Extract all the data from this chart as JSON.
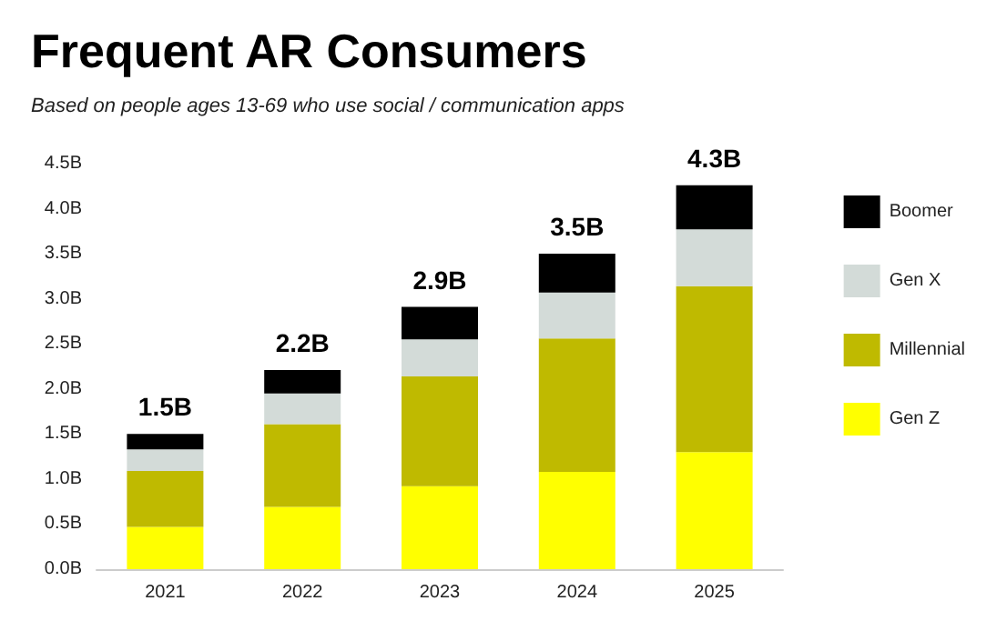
{
  "chart_data": {
    "type": "bar",
    "title": "Frequent AR Consumers",
    "subtitle": "Based on people ages 13-69 who use social / communication apps",
    "categories": [
      "2021",
      "2022",
      "2023",
      "2024",
      "2025"
    ],
    "series": [
      {
        "name": "Gen Z",
        "color": "#ffff00",
        "values": [
          0.47,
          0.69,
          0.92,
          1.08,
          1.3
        ]
      },
      {
        "name": "Millennial",
        "color": "#bfba00",
        "values": [
          0.62,
          0.92,
          1.22,
          1.48,
          1.84
        ]
      },
      {
        "name": "Gen X",
        "color": "#d3dbd8",
        "values": [
          0.24,
          0.34,
          0.41,
          0.51,
          0.63
        ]
      },
      {
        "name": "Boomer",
        "color": "#000000",
        "values": [
          0.17,
          0.26,
          0.36,
          0.43,
          0.49
        ]
      }
    ],
    "stacked": true,
    "totals": [
      "1.5B",
      "2.2B",
      "2.9B",
      "3.5B",
      "4.3B"
    ],
    "ylim": [
      0,
      4.5
    ],
    "yticks": [
      {
        "value": 0,
        "label": "0.0B"
      },
      {
        "value": 0.5,
        "label": "0.5B"
      },
      {
        "value": 1,
        "label": "1.0B"
      },
      {
        "value": 1.5,
        "label": "1.5B"
      },
      {
        "value": 2,
        "label": "2.0B"
      },
      {
        "value": 2.5,
        "label": "2.5B"
      },
      {
        "value": 3,
        "label": "3.0B"
      },
      {
        "value": 3.5,
        "label": "3.5B"
      },
      {
        "value": 4,
        "label": "4.0B"
      },
      {
        "value": 4.5,
        "label": "4.5B"
      }
    ],
    "grid": false,
    "legend": "right"
  }
}
